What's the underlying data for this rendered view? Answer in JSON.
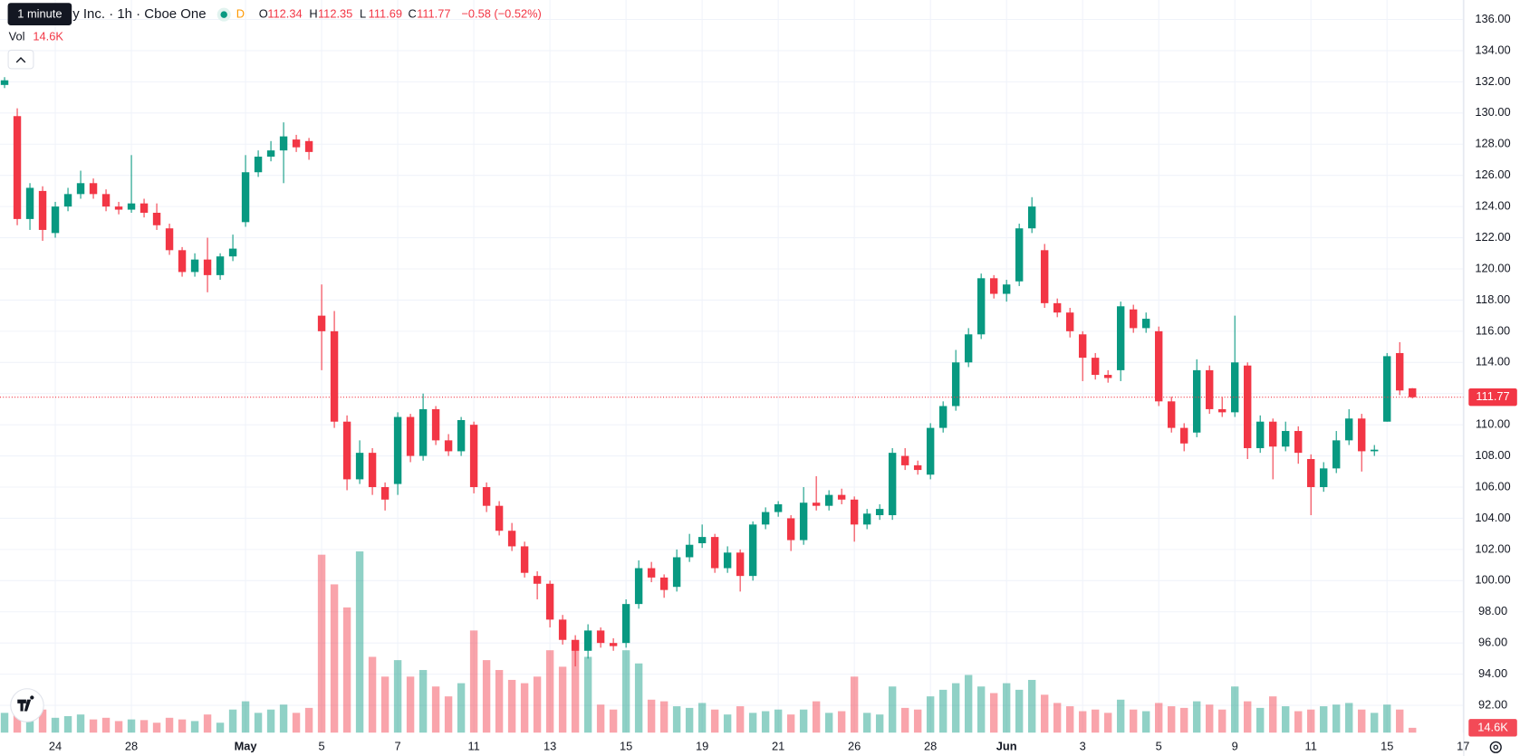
{
  "chart_data": {
    "type": "candlestick",
    "title": "y Inc. · 1h · Cboe One",
    "tooltip": "1 minute",
    "interval_badge": "D",
    "legend": {
      "open_label": "O",
      "high_label": "H",
      "low_label": "L",
      "close_label": "C",
      "change": "−0.58 (−0.52%)",
      "volume_label": "Vol"
    },
    "volume_label": "14.6K",
    "up_color": "#089981",
    "down_color": "#f23645",
    "grid": true,
    "xlim": [
      -0.36,
      115.05
    ],
    "ylim": [
      90.25,
      137.25
    ],
    "xticks": [
      {
        "value": 4,
        "label": "24"
      },
      {
        "value": 10,
        "label": "28"
      },
      {
        "value": 19,
        "label": "May"
      },
      {
        "value": 25,
        "label": "5"
      },
      {
        "value": 31,
        "label": "7"
      },
      {
        "value": 37,
        "label": "11"
      },
      {
        "value": 43,
        "label": "13"
      },
      {
        "value": 49,
        "label": "15"
      },
      {
        "value": 55,
        "label": "19"
      },
      {
        "value": 61,
        "label": "21"
      },
      {
        "value": 67,
        "label": "26"
      },
      {
        "value": 73,
        "label": "28"
      },
      {
        "value": 79,
        "label": "Jun"
      },
      {
        "value": 85,
        "label": "3"
      },
      {
        "value": 91,
        "label": "5"
      },
      {
        "value": 97,
        "label": "9"
      },
      {
        "value": 103,
        "label": "11"
      },
      {
        "value": 109,
        "label": "15"
      },
      {
        "value": 115,
        "label": "17"
      }
    ],
    "yticks": [
      {
        "value": 92,
        "label": "92.00"
      },
      {
        "value": 94,
        "label": "94.00"
      },
      {
        "value": 96,
        "label": "96.00"
      },
      {
        "value": 98,
        "label": "98.00"
      },
      {
        "value": 100,
        "label": "100.00"
      },
      {
        "value": 102,
        "label": "102.00"
      },
      {
        "value": 104,
        "label": "104.00"
      },
      {
        "value": 106,
        "label": "106.00"
      },
      {
        "value": 108,
        "label": "108.00"
      },
      {
        "value": 110,
        "label": "110.00"
      },
      {
        "value": 112,
        "label": "112.00"
      },
      {
        "value": 114,
        "label": "114.00"
      },
      {
        "value": 116,
        "label": "116.00"
      },
      {
        "value": 118,
        "label": "118.00"
      },
      {
        "value": 120,
        "label": "120.00"
      },
      {
        "value": 122,
        "label": "122.00"
      },
      {
        "value": 124,
        "label": "124.00"
      },
      {
        "value": 126,
        "label": "126.00"
      },
      {
        "value": 128,
        "label": "128.00"
      },
      {
        "value": 130,
        "label": "130.00"
      },
      {
        "value": 132,
        "label": "132.00"
      },
      {
        "value": 134,
        "label": "134.00"
      },
      {
        "value": 136,
        "label": "136.00"
      }
    ],
    "open": [
      131.8,
      129.8,
      123.2,
      125,
      122.3,
      124,
      124.8,
      125.5,
      124.8,
      124,
      123.8,
      124.2,
      123.6,
      122.6,
      121.2,
      119.8,
      120.6,
      119.6,
      120.8,
      123,
      126.2,
      127.2,
      127.6,
      128.3,
      128.2,
      117,
      116,
      110.2,
      106.5,
      108.2,
      106,
      106.2,
      110.5,
      108,
      111,
      109,
      108.3,
      110,
      106,
      104.8,
      103.2,
      102.2,
      100.3,
      99.8,
      97.5,
      96.2,
      95.5,
      96.8,
      96,
      96,
      98.5,
      100.8,
      100.2,
      99.6,
      101.5,
      102.4,
      102.8,
      100.8,
      101.8,
      100.3,
      103.6,
      104.4,
      104,
      102.6,
      105,
      104.8,
      105.5,
      105.2,
      103.6,
      104.2,
      104.2,
      108,
      107.4,
      106.8,
      109.8,
      111.2,
      114,
      115.8,
      119.4,
      118.4,
      119.2,
      122.6,
      121.2,
      117.8,
      117.2,
      115.8,
      114.3,
      113.2,
      113.5,
      117.4,
      116.2,
      116,
      111.5,
      109.8,
      109.5,
      113.5,
      111,
      110.8,
      113.8,
      108.5,
      110.2,
      108.6,
      109.6,
      107.8,
      106,
      107.2,
      109,
      110.4,
      108.3,
      110.2,
      114.6,
      112.34
    ],
    "high": [
      132.3,
      130.3,
      125.5,
      125.3,
      124.3,
      125.2,
      126.3,
      125.8,
      125.1,
      124.3,
      127.3,
      124.5,
      124.2,
      122.9,
      121.4,
      121,
      122,
      121,
      122.2,
      127.3,
      127.6,
      128.2,
      129.4,
      128.6,
      128.4,
      119,
      117.3,
      110.6,
      109,
      108.5,
      106.3,
      110.8,
      110.7,
      112,
      111.2,
      109.4,
      110.5,
      110.2,
      106.3,
      105.1,
      103.7,
      102.5,
      100.6,
      100,
      97.8,
      96.5,
      97.2,
      97,
      96.3,
      98.8,
      101.3,
      101.2,
      100.4,
      102,
      103,
      103.6,
      103,
      102.2,
      102,
      103.8,
      104.7,
      105.1,
      104.2,
      106,
      106.7,
      105.8,
      105.9,
      105.4,
      104.6,
      104.9,
      108.5,
      108.5,
      107.7,
      110.1,
      111.5,
      114.8,
      116.2,
      119.7,
      119.6,
      119.3,
      122.9,
      124.6,
      121.6,
      118.1,
      117.5,
      116,
      114.6,
      113.5,
      117.9,
      117.7,
      117.2,
      116.3,
      111.8,
      110.1,
      114.2,
      113.8,
      111.8,
      117,
      114,
      110.6,
      110.4,
      110.2,
      109.9,
      108.1,
      107.6,
      109.6,
      111,
      110.7,
      108.7,
      114.6,
      115.3,
      112.35
    ],
    "low": [
      131.6,
      122.8,
      122.5,
      121.8,
      122,
      123.7,
      124.5,
      124.5,
      123.7,
      123.5,
      123.6,
      123.3,
      122.5,
      120.9,
      119.5,
      119.5,
      118.5,
      119.3,
      120.5,
      122.7,
      125.9,
      126.9,
      125.5,
      127.5,
      127,
      113.5,
      109.8,
      105.8,
      106.2,
      105.5,
      104.5,
      105.5,
      107.6,
      107.7,
      108.7,
      108,
      108,
      105.6,
      104.4,
      102.9,
      101.9,
      100.2,
      98.8,
      97,
      95.9,
      94.5,
      95,
      95.7,
      95.5,
      95.7,
      98.2,
      99.9,
      98.9,
      99.3,
      101.2,
      102.1,
      100.5,
      100.5,
      99.3,
      100,
      103.3,
      104.1,
      101.9,
      102.3,
      104.5,
      104.5,
      104.9,
      102.5,
      103.3,
      103.9,
      103.9,
      107.1,
      106.8,
      106.5,
      109.5,
      110.9,
      113.7,
      115.5,
      118.1,
      117.9,
      118.9,
      122.3,
      117.5,
      116.9,
      115.6,
      112.8,
      112.9,
      112.7,
      112.8,
      115.9,
      115.9,
      111.2,
      109.5,
      108.3,
      109.2,
      110.7,
      110.5,
      110.5,
      107.8,
      108.2,
      106.5,
      108.3,
      107.5,
      104.2,
      105.7,
      106.9,
      108.7,
      107,
      108,
      110.2,
      111.9,
      111.69
    ],
    "close": [
      132.1,
      123.2,
      125.2,
      122.5,
      124,
      124.8,
      125.5,
      124.8,
      124,
      123.8,
      124.2,
      123.6,
      122.8,
      121.2,
      119.8,
      120.6,
      119.6,
      120.8,
      121.3,
      126.2,
      127.2,
      127.6,
      128.5,
      127.8,
      127.5,
      116,
      110.2,
      106.5,
      108.2,
      106,
      105.2,
      110.5,
      108,
      111,
      109,
      108.3,
      110.3,
      106,
      104.8,
      103.2,
      102.2,
      100.5,
      99.8,
      97.5,
      96.2,
      95.5,
      96.8,
      96,
      95.8,
      98.5,
      100.8,
      100.2,
      99.4,
      101.5,
      102.3,
      102.8,
      100.8,
      101.8,
      100.3,
      103.6,
      104.4,
      104.9,
      102.6,
      105,
      104.8,
      105.5,
      105.2,
      103.6,
      104.3,
      104.6,
      108.2,
      107.4,
      107.1,
      109.8,
      111.2,
      114,
      115.8,
      119.4,
      118.4,
      119,
      122.6,
      124,
      117.8,
      117.2,
      116,
      114.3,
      113.2,
      113,
      117.6,
      116.2,
      116.8,
      111.5,
      109.8,
      108.8,
      113.5,
      111,
      110.8,
      114,
      108.5,
      110.2,
      108.6,
      109.6,
      108.2,
      106,
      107.2,
      109,
      110.4,
      108.3,
      108.4,
      114.4,
      112.2,
      111.77
    ],
    "volume": [
      60000,
      90000,
      55000,
      70000,
      45000,
      50000,
      55000,
      40000,
      45000,
      35000,
      40000,
      38000,
      30000,
      45000,
      40000,
      35000,
      55000,
      30000,
      70000,
      95000,
      60000,
      70000,
      85000,
      60000,
      75000,
      540000,
      450000,
      380000,
      550000,
      230000,
      170000,
      220000,
      170000,
      190000,
      140000,
      110000,
      150000,
      310000,
      220000,
      190000,
      160000,
      150000,
      170000,
      250000,
      200000,
      280000,
      230000,
      85000,
      70000,
      250000,
      210000,
      100000,
      95000,
      80000,
      75000,
      90000,
      70000,
      55000,
      80000,
      60000,
      65000,
      70000,
      55000,
      70000,
      95000,
      60000,
      65000,
      170000,
      60000,
      55000,
      140000,
      75000,
      70000,
      110000,
      130000,
      150000,
      175000,
      140000,
      120000,
      150000,
      130000,
      160000,
      115000,
      90000,
      80000,
      65000,
      70000,
      60000,
      100000,
      70000,
      65000,
      90000,
      80000,
      75000,
      95000,
      85000,
      70000,
      140000,
      95000,
      75000,
      110000,
      80000,
      65000,
      70000,
      80000,
      85000,
      90000,
      70000,
      60000,
      85000,
      70000,
      14600
    ]
  }
}
